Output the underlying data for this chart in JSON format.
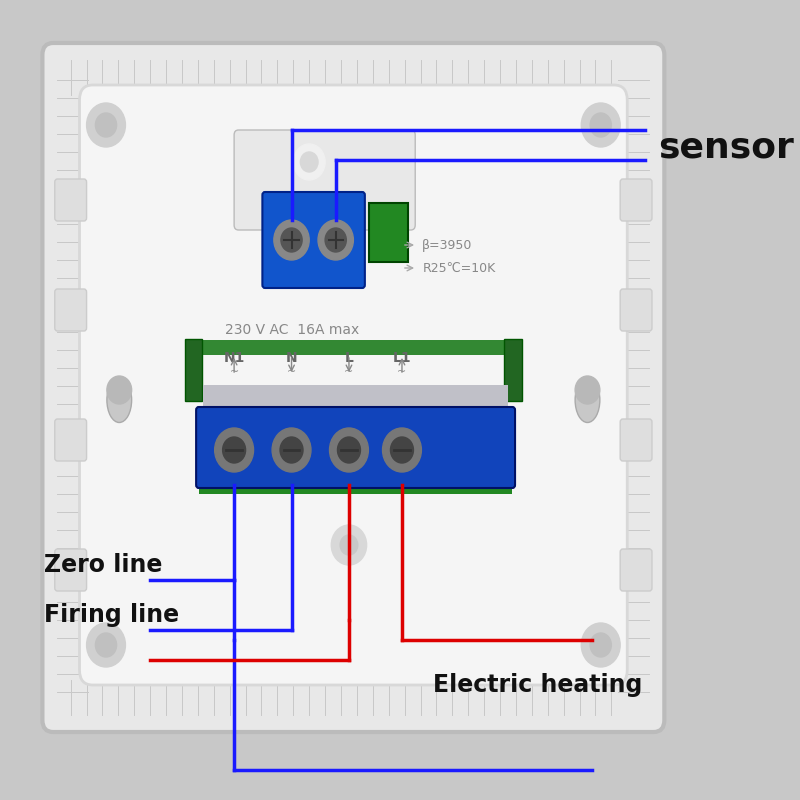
{
  "bg_color": "#c8c8c8",
  "outer_bg": "#e0e0e0",
  "inner_bg": "#f2f2f2",
  "white_panel": "#ffffff",
  "blue_color": "#1a1aff",
  "red_color": "#dd0000",
  "wire_lw": 2.5,
  "title_text": "sensor",
  "title_fontsize": 26,
  "label_zero": "Zero line",
  "label_firing": "Firing line",
  "label_electric": "Electric heating",
  "label_fontsize": 17,
  "annotation_230": "230 V AC  16A max",
  "annotation_beta": "β=3950",
  "annotation_r25": "R25℃=10K",
  "terminal_labels": [
    "N1",
    "N",
    "L",
    "L1"
  ]
}
